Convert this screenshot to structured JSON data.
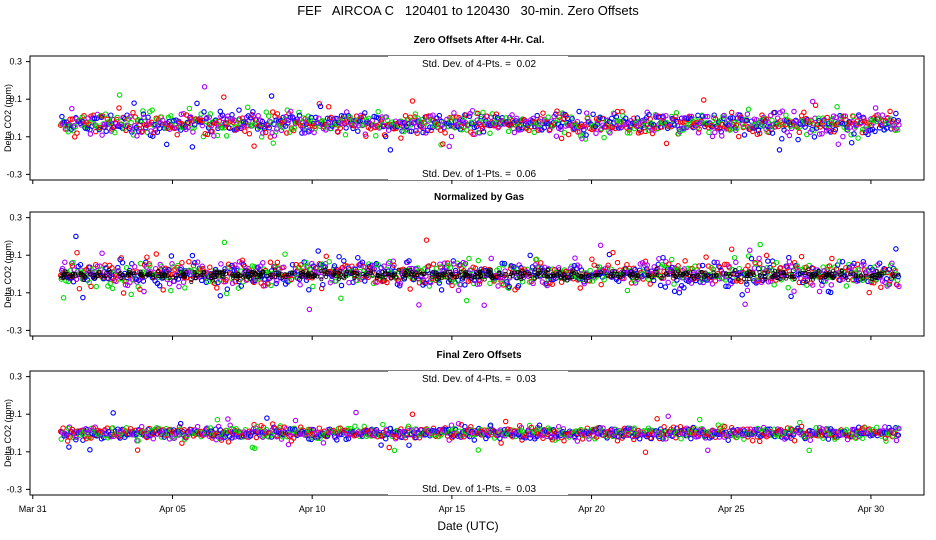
{
  "chart_data": {
    "type": "scatter",
    "title": "FEF   AIRCOA C   120401 to 120430   30-min. Zero Offsets",
    "xlabel": "Date (UTC)",
    "x_ticks": [
      "Mar 31",
      "Apr 05",
      "Apr 10",
      "Apr 15",
      "Apr 20",
      "Apr 25",
      "Apr 30"
    ],
    "x_tick_days": [
      0,
      5,
      10,
      15,
      20,
      25,
      30
    ],
    "xlim_days": [
      -0.1,
      31.9
    ],
    "data_range_days": [
      1.0,
      31.0
    ],
    "series_colors": [
      "#ff0000",
      "#00dd00",
      "#0000ff",
      "#aa00ff"
    ],
    "panels": [
      {
        "title": "Zero Offsets After 4-Hr. Cal.",
        "ylabel": "Delta CO2 (ppm)",
        "ylim": [
          -0.33,
          0.33
        ],
        "y_ticks": [
          -0.3,
          -0.1,
          0.1,
          0.3
        ],
        "y_tick_labels": [
          "-0.3",
          "-0.1",
          "0.1",
          "0.3"
        ],
        "top_annotation": "Std. Dev. of 4-Pts. =  0.02",
        "bottom_annotation": "Std. Dev. of 1-Pts. =  0.06",
        "center": -0.03,
        "spread": 0.045,
        "outlier_max": 0.17,
        "overlay": "none"
      },
      {
        "title": "Normalized by Gas",
        "ylabel": "Delta CO2 (ppm)",
        "ylim": [
          -0.33,
          0.33
        ],
        "y_ticks": [
          -0.3,
          -0.1,
          0.1,
          0.3
        ],
        "y_tick_labels": [
          "-0.3",
          "-0.1",
          "0.1",
          "0.3"
        ],
        "center": 0.0,
        "spread": 0.055,
        "outlier_max": 0.2,
        "overlay": "black"
      },
      {
        "title": "Final Zero Offsets",
        "ylabel": "Delta CO2 (ppm)",
        "ylim": [
          -0.33,
          0.33
        ],
        "y_ticks": [
          -0.3,
          -0.1,
          0.1,
          0.3
        ],
        "y_tick_labels": [
          "-0.3",
          "-0.1",
          "0.1",
          "0.3"
        ],
        "top_annotation": "Std. Dev. of 4-Pts. =  0.03",
        "bottom_annotation": "Std. Dev. of 1-Pts. =  0.03",
        "center": 0.0,
        "spread": 0.025,
        "outlier_max": 0.12,
        "overlay": "none"
      }
    ]
  }
}
